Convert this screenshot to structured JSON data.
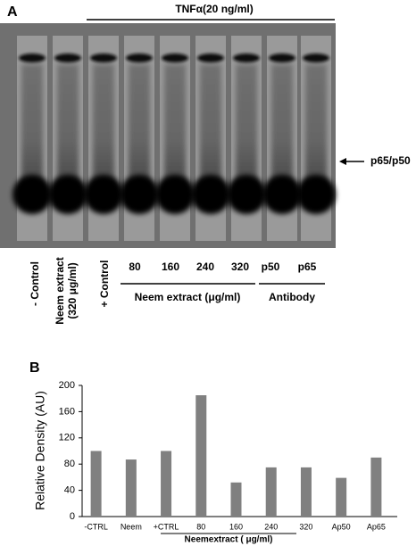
{
  "panel_a": {
    "label": "A",
    "treatment": "TNFα(20 ng/ml)",
    "band_label": "p65/p50",
    "lanes": [
      "- Control",
      "Neem extract",
      "(320 μg/ml)",
      "+ Control",
      "80",
      "160",
      "240",
      "320",
      "p50",
      "p65"
    ],
    "group_neem": "Neem extract (μg/ml)",
    "group_antibody": "Antibody"
  },
  "chart_data": {
    "type": "bar",
    "panel_label": "B",
    "y_label": "Relative Density (AU)",
    "x_label": "Neemextract ( μg/ml)",
    "categories": [
      "-CTRL",
      "Neem",
      "+CTRL",
      "80",
      "160",
      "240",
      "320",
      "Ap50",
      "Ap65"
    ],
    "values": [
      100,
      87,
      100,
      185,
      52,
      75,
      75,
      59,
      90
    ],
    "color": "#808080",
    "ylim": [
      0,
      200
    ],
    "yticks": [
      0,
      40,
      80,
      120,
      160,
      200
    ],
    "grid": false
  }
}
